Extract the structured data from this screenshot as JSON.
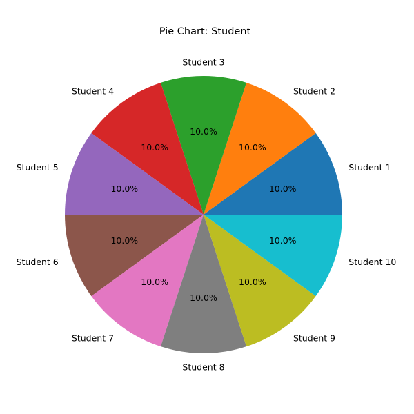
{
  "chart_data": {
    "type": "pie",
    "title": "Pie Chart: Student",
    "start_angle_deg": 0,
    "direction": "counterclockwise",
    "slices": [
      {
        "label": "Student 1",
        "value": 10.0,
        "pct_label": "10.0%",
        "color": "#1f77b4"
      },
      {
        "label": "Student 2",
        "value": 10.0,
        "pct_label": "10.0%",
        "color": "#ff7f0e"
      },
      {
        "label": "Student 3",
        "value": 10.0,
        "pct_label": "10.0%",
        "color": "#2ca02c"
      },
      {
        "label": "Student 4",
        "value": 10.0,
        "pct_label": "10.0%",
        "color": "#d62728"
      },
      {
        "label": "Student 5",
        "value": 10.0,
        "pct_label": "10.0%",
        "color": "#9467bd"
      },
      {
        "label": "Student 6",
        "value": 10.0,
        "pct_label": "10.0%",
        "color": "#8c564b"
      },
      {
        "label": "Student 7",
        "value": 10.0,
        "pct_label": "10.0%",
        "color": "#e377c2"
      },
      {
        "label": "Student 8",
        "value": 10.0,
        "pct_label": "10.0%",
        "color": "#7f7f7f"
      },
      {
        "label": "Student 9",
        "value": 10.0,
        "pct_label": "10.0%",
        "color": "#bcbd22"
      },
      {
        "label": "Student 10",
        "value": 10.0,
        "pct_label": "10.0%",
        "color": "#17becf"
      }
    ]
  }
}
